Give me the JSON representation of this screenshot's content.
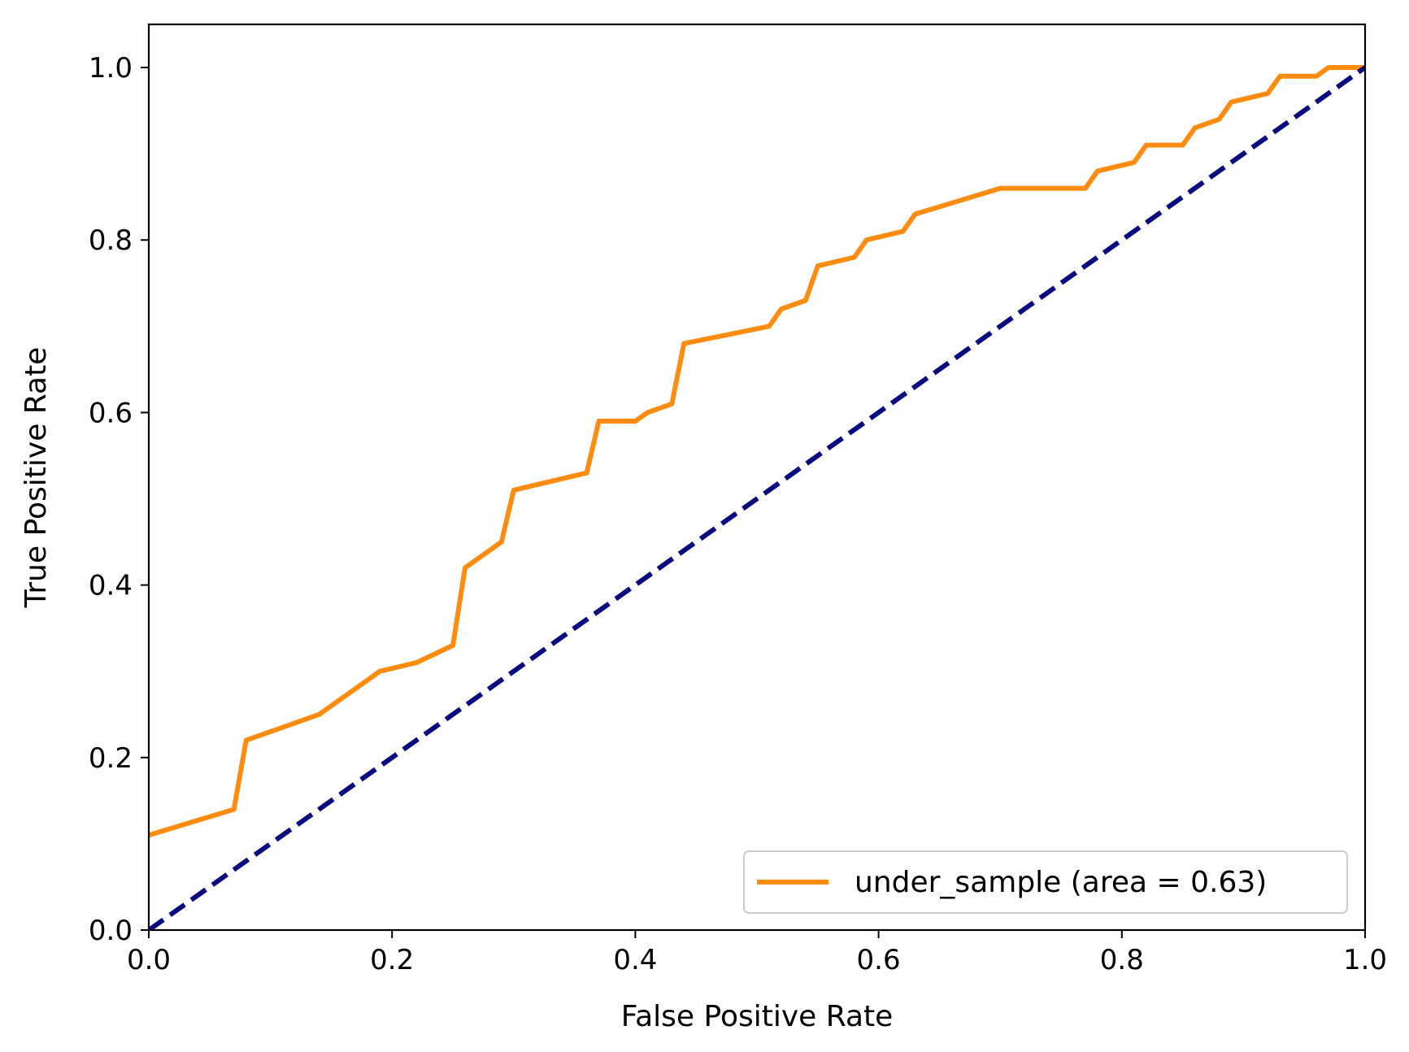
{
  "chart_data": {
    "type": "line",
    "title": "",
    "xlabel": "False Positive Rate",
    "ylabel": "True Positive Rate",
    "xlim": [
      0.0,
      1.0
    ],
    "ylim": [
      0.0,
      1.05
    ],
    "xticks": [
      "0.0",
      "0.2",
      "0.4",
      "0.6",
      "0.8",
      "1.0"
    ],
    "yticks": [
      "0.0",
      "0.2",
      "0.4",
      "0.6",
      "0.8",
      "1.0"
    ],
    "grid": false,
    "legend_position": "lower right",
    "series": [
      {
        "name": "under_sample (area = 0.63)",
        "color": "#ff8c0e",
        "style": "solid",
        "x": [
          0.0,
          0.07,
          0.08,
          0.14,
          0.15,
          0.18,
          0.19,
          0.22,
          0.25,
          0.26,
          0.29,
          0.3,
          0.36,
          0.37,
          0.4,
          0.41,
          0.43,
          0.44,
          0.51,
          0.52,
          0.54,
          0.55,
          0.58,
          0.59,
          0.62,
          0.63,
          0.7,
          0.77,
          0.78,
          0.81,
          0.82,
          0.85,
          0.86,
          0.88,
          0.89,
          0.92,
          0.93,
          0.96,
          0.97,
          1.0
        ],
        "y": [
          0.11,
          0.14,
          0.22,
          0.25,
          0.26,
          0.29,
          0.3,
          0.31,
          0.33,
          0.42,
          0.45,
          0.51,
          0.53,
          0.59,
          0.59,
          0.6,
          0.61,
          0.68,
          0.7,
          0.72,
          0.73,
          0.77,
          0.78,
          0.8,
          0.81,
          0.83,
          0.86,
          0.86,
          0.88,
          0.89,
          0.91,
          0.91,
          0.93,
          0.94,
          0.96,
          0.97,
          0.99,
          0.99,
          1.0,
          1.0
        ]
      },
      {
        "name": "",
        "color": "#0a0a80",
        "style": "dashed",
        "x": [
          0.0,
          1.0
        ],
        "y": [
          0.0,
          1.0
        ]
      }
    ]
  }
}
